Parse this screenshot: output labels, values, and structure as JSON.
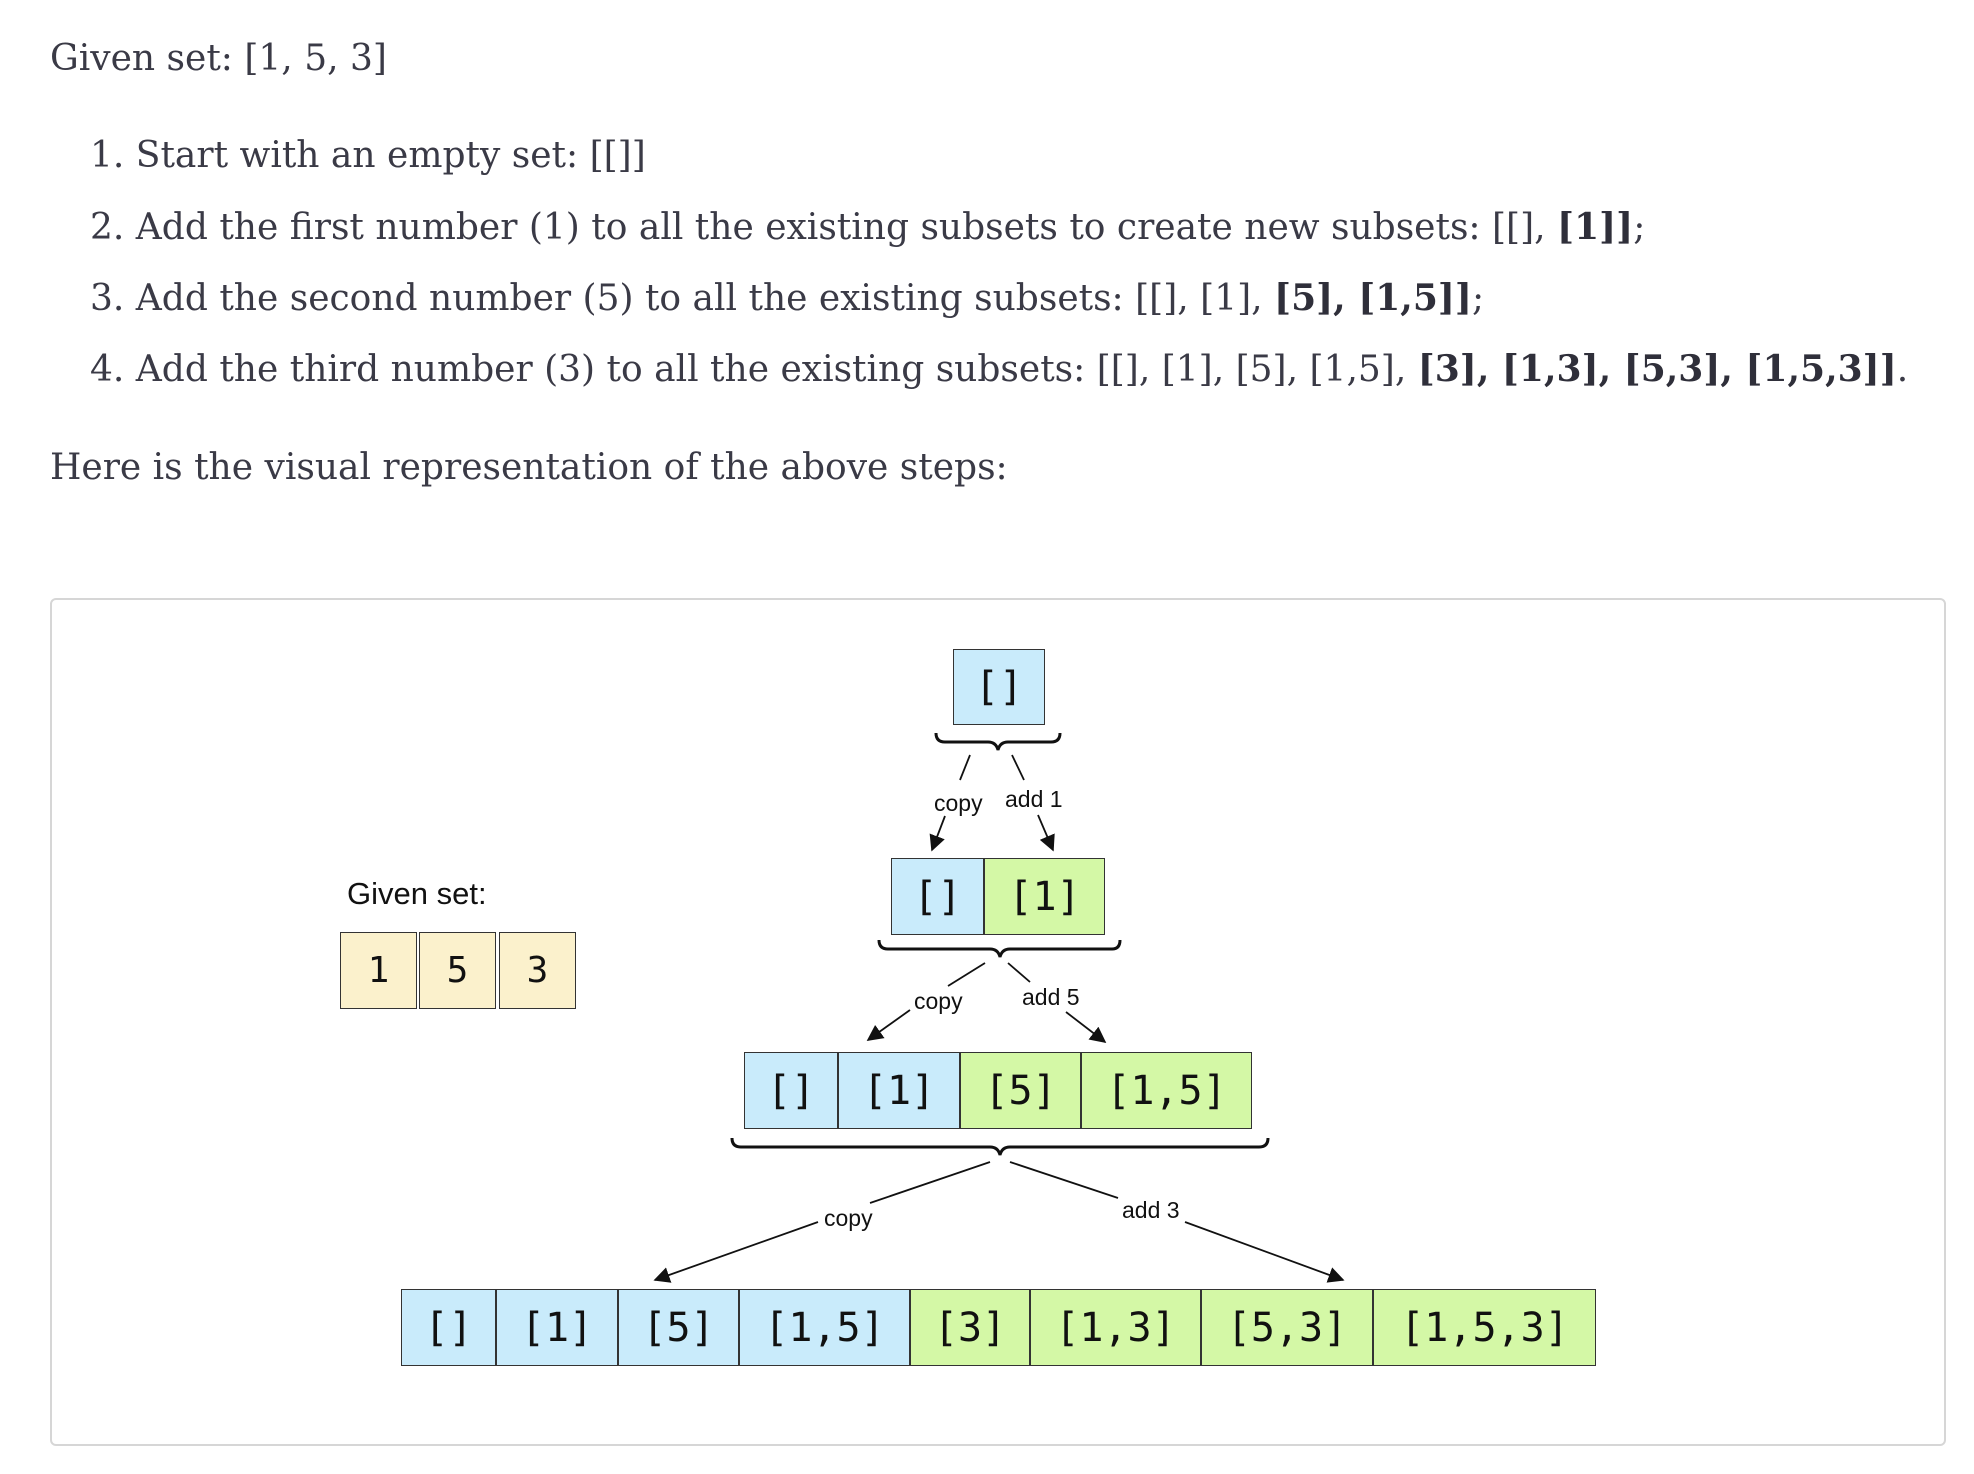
{
  "intro": "Given set: [1, 5, 3]",
  "steps": [
    {
      "num": "1.",
      "parts": [
        {
          "t": "Start with an empty set: [[]]",
          "b": false
        }
      ]
    },
    {
      "num": "2.",
      "parts": [
        {
          "t": "Add the first number (1) to all the existing subsets to create new subsets: [[], ",
          "b": false
        },
        {
          "t": "[1]]",
          "b": true
        },
        {
          "t": ";",
          "b": false
        }
      ]
    },
    {
      "num": "3.",
      "parts": [
        {
          "t": "Add the second number (5) to all the existing subsets: [[], [1], ",
          "b": false
        },
        {
          "t": "[5], [1,5]]",
          "b": true
        },
        {
          "t": ";",
          "b": false
        }
      ]
    },
    {
      "num": "4.",
      "parts": [
        {
          "t": "Add the third number (3) to all the existing subsets: [[], [1], [5], [1,5], ",
          "b": false
        },
        {
          "t": "[3], [1,3], [5,3], [1,5,3]]",
          "b": true
        },
        {
          "t": ".",
          "b": false
        }
      ]
    }
  ],
  "outro": "Here is the visual representation of the above steps:",
  "diagram": {
    "given_label": "Given set:",
    "given_values": [
      "1",
      "5",
      "3"
    ],
    "level0": [
      {
        "text": "[]",
        "kind": "copied"
      }
    ],
    "level1": [
      {
        "text": "[]",
        "kind": "copied"
      },
      {
        "text": "[1]",
        "kind": "added"
      }
    ],
    "level2": [
      {
        "text": "[]",
        "kind": "copied"
      },
      {
        "text": "[1]",
        "kind": "copied"
      },
      {
        "text": "[5]",
        "kind": "added"
      },
      {
        "text": "[1,5]",
        "kind": "added"
      }
    ],
    "level3": [
      {
        "text": "[]",
        "kind": "copied"
      },
      {
        "text": "[1]",
        "kind": "copied"
      },
      {
        "text": "[5]",
        "kind": "copied"
      },
      {
        "text": "[1,5]",
        "kind": "copied"
      },
      {
        "text": "[3]",
        "kind": "added"
      },
      {
        "text": "[1,3]",
        "kind": "added"
      },
      {
        "text": "[5,3]",
        "kind": "added"
      },
      {
        "text": "[1,5,3]",
        "kind": "added"
      }
    ],
    "edge_labels": {
      "copy1": "copy",
      "add1": "add 1",
      "copy2": "copy",
      "add2": "add 5",
      "copy3": "copy",
      "add3": "add 3"
    },
    "colors": {
      "copied": "#c9ebfb",
      "added": "#d4f8a6",
      "given": "#fbf1cc"
    }
  }
}
